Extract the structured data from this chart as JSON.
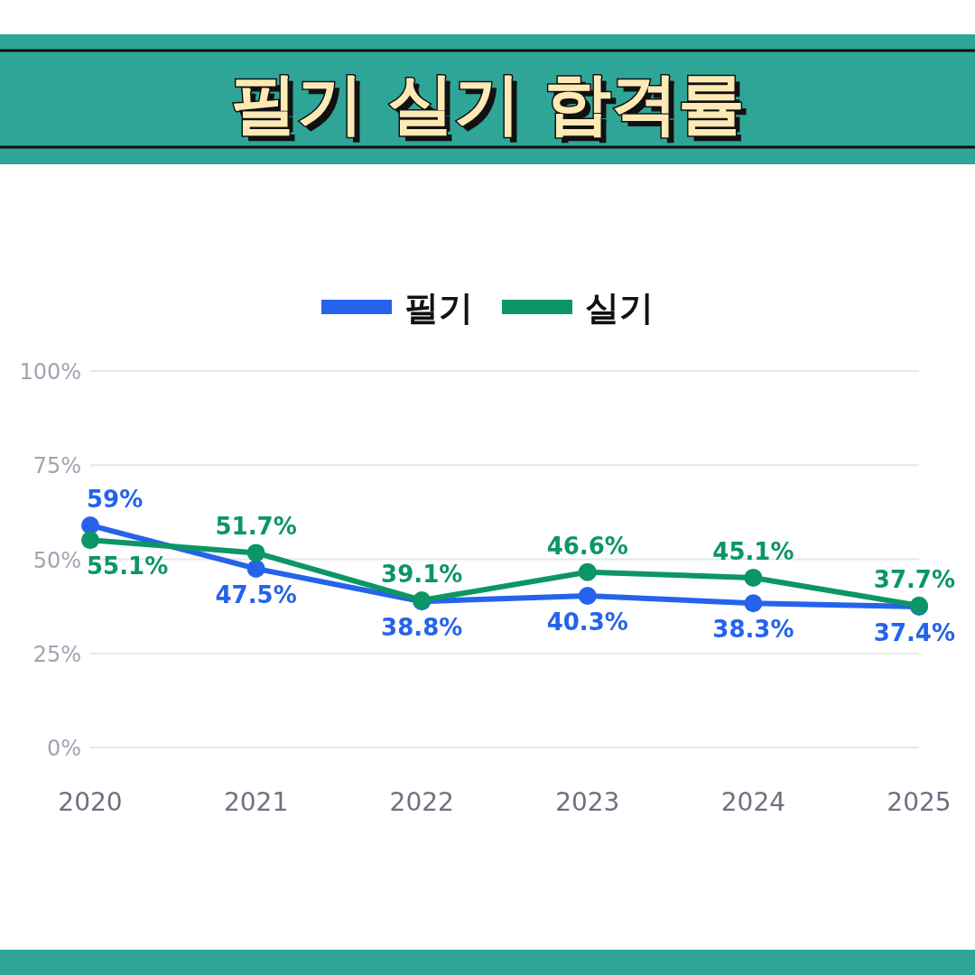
{
  "chart_data": {
    "type": "line",
    "title": "필기 실기 합격률",
    "categories": [
      "2020",
      "2021",
      "2022",
      "2023",
      "2024",
      "2025"
    ],
    "series": [
      {
        "name": "필기",
        "color": "#2563eb",
        "values": [
          59,
          47.5,
          38.8,
          40.3,
          38.3,
          37.4
        ],
        "value_labels": [
          "59%",
          "47.5%",
          "38.8%",
          "40.3%",
          "38.3%",
          "37.4%"
        ]
      },
      {
        "name": "실기",
        "color": "#0c9665",
        "values": [
          55.1,
          51.7,
          39.1,
          46.6,
          45.1,
          37.7
        ],
        "value_labels": [
          "55.1%",
          "51.7%",
          "39.1%",
          "46.6%",
          "45.1%",
          "37.7%"
        ]
      }
    ],
    "ylim": [
      0,
      100
    ],
    "yticks": [
      {
        "value": 0,
        "label": "0%"
      },
      {
        "value": 25,
        "label": "25%"
      },
      {
        "value": 50,
        "label": "50%"
      },
      {
        "value": 75,
        "label": "75%"
      },
      {
        "value": 100,
        "label": "100%"
      }
    ],
    "grid": "y",
    "legend": "top",
    "marker": "circle"
  }
}
